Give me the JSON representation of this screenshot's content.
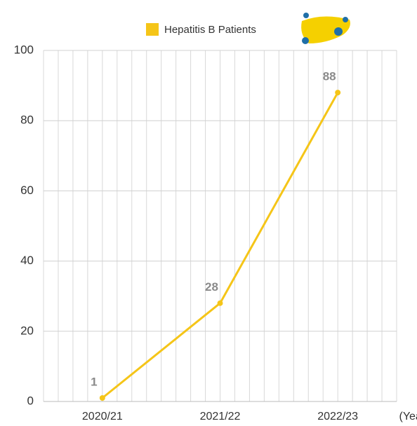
{
  "chart_data": {
    "type": "line",
    "categories": [
      "2020/21",
      "2021/22",
      "2022/23"
    ],
    "series": [
      {
        "name": "Hepatitis B Patients",
        "color": "#f5c518",
        "values": [
          1,
          28,
          88
        ]
      }
    ],
    "xlabel": "(Year)",
    "ylim": [
      0,
      100
    ],
    "yticks": [
      0,
      20,
      40,
      60,
      80,
      100
    ],
    "grid": true
  }
}
